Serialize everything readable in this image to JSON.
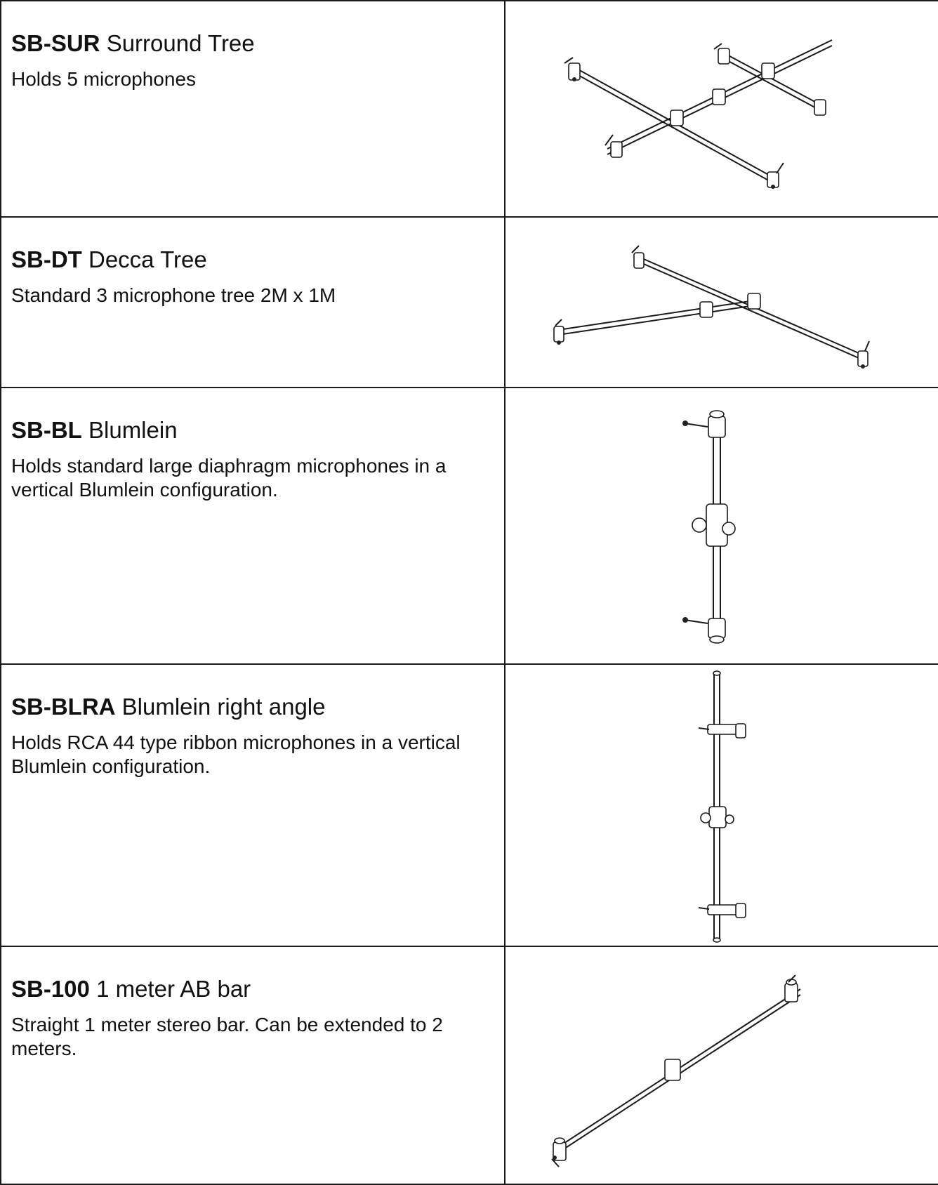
{
  "rows": [
    {
      "model": "SB-SUR",
      "name": "Surround Tree",
      "description": "Holds 5 microphones",
      "drawing": "surround-tree-drawing"
    },
    {
      "model": "SB-DT",
      "name": "Decca Tree",
      "description": "Standard 3 microphone tree 2M x 1M",
      "drawing": "decca-tree-drawing"
    },
    {
      "model": "SB-BL",
      "name": "Blumlein",
      "description": "Holds standard large diaphragm microphones in a vertical Blumlein configuration.",
      "drawing": "blumlein-drawing"
    },
    {
      "model": "SB-BLRA",
      "name": "Blumlein right angle",
      "description": "Holds RCA 44 type ribbon microphones in a vertical Blumlein  configuration.",
      "drawing": "blumlein-right-angle-drawing"
    },
    {
      "model": "SB-100",
      "name": "1 meter AB bar",
      "description": "Straight 1 meter stereo bar. Can be extended to 2 meters.",
      "drawing": "ab-bar-drawing"
    }
  ]
}
